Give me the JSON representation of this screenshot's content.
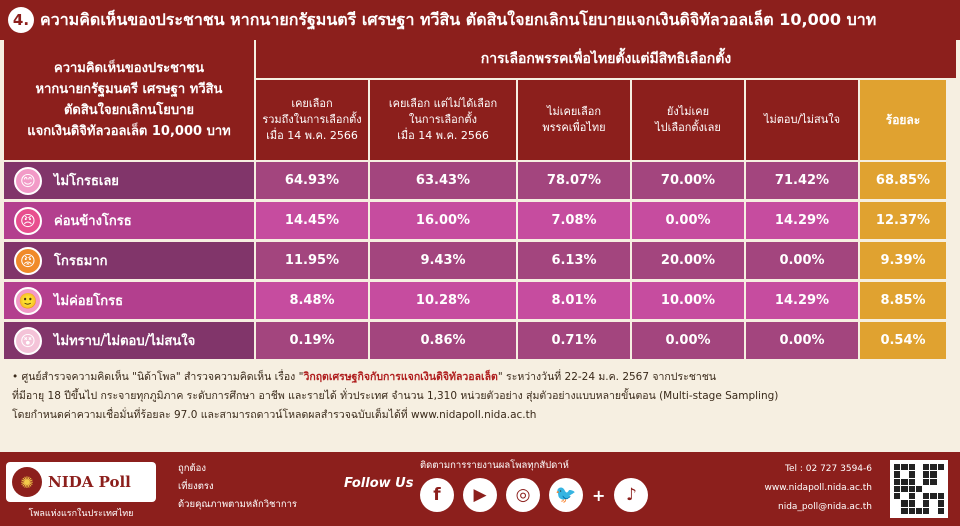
{
  "title": {
    "number": "4.",
    "text": "ความคิดเห็นของประชาชน หากนายกรัฐมนตรี เศรษฐา ทวีสิน ตัดสินใจยกเลิกนโยบายแจกเงินดิจิทัลวอลเล็ต 10,000 บาท"
  },
  "table": {
    "corner_header": "ความคิดเห็นของประชาชน\nหากนายกรัฐมนตรี เศรษฐา ทวีสิน\nตัดสินใจยกเลิกนโยบาย\nแจกเงินดิจิทัลวอลเล็ต 10,000 บาท",
    "group_header": "การเลือกพรรคเพื่อไทยตั้งแต่มีสิทธิเลือกตั้ง",
    "total_header": "ร้อยละ"
  },
  "chart_data": {
    "type": "table",
    "columns": [
      "เคยเลือก\nรวมถึงในการเลือกตั้ง\nเมื่อ 14 พ.ค. 2566",
      "เคยเลือก แต่ไม่ได้เลือก\nในการเลือกตั้ง\nเมื่อ 14 พ.ค. 2566",
      "ไม่เคยเลือก\nพรรคเพื่อไทย",
      "ยังไม่เคย\nไปเลือกตั้งเลย",
      "ไม่ตอบ/ไม่สนใจ",
      "ร้อยละ"
    ],
    "rows": [
      {
        "label": "ไม่โกรธเลย",
        "values": [
          "64.93%",
          "63.43%",
          "78.07%",
          "70.00%",
          "71.42%",
          "68.85%"
        ]
      },
      {
        "label": "ค่อนข้างโกรธ",
        "values": [
          "14.45%",
          "16.00%",
          "7.08%",
          "0.00%",
          "14.29%",
          "12.37%"
        ]
      },
      {
        "label": "โกรธมาก",
        "values": [
          "11.95%",
          "9.43%",
          "6.13%",
          "20.00%",
          "0.00%",
          "9.39%"
        ]
      },
      {
        "label": "ไม่ค่อยโกรธ",
        "values": [
          "8.48%",
          "10.28%",
          "8.01%",
          "10.00%",
          "14.29%",
          "8.85%"
        ]
      },
      {
        "label": "ไม่ทราบ/ไม่ตอบ/ไม่สนใจ",
        "values": [
          "0.19%",
          "0.86%",
          "0.71%",
          "0.00%",
          "0.00%",
          "0.54%"
        ]
      }
    ]
  },
  "colors": {
    "header": "#8c1f1c",
    "total_col": "#e0a230",
    "row_even": "#a3457e",
    "row_odd": "#c64c9f",
    "row_even_label": "#81356a",
    "row_odd_label": "#b33f8e",
    "face_fills": [
      "#f29ac7",
      "#e84f8e",
      "#f08a2a",
      "#f29ac7",
      "#f4c3d8"
    ]
  },
  "faces": [
    "smile-face-icon",
    "annoyed-face-icon",
    "angry-fire-face-icon",
    "neutral-face-icon",
    "confused-face-icon"
  ],
  "face_glyphs": [
    "😊",
    "😠",
    "😡",
    "🙂",
    "😵"
  ],
  "notes": {
    "line1_pre": "• ศูนย์สำรวจความคิดเห็น \"นิด้าโพล\" สำรวจความคิดเห็น เรื่อง \"",
    "line1_topic": "วิกฤตเศรษฐกิจกับการแจกเงินดิจิทัลวอลเล็ต",
    "line1_post": "\" ระหว่างวันที่ 22-24 ม.ค. 2567 จากประชาชน",
    "line2": "ที่มีอายุ 18 ปีขึ้นไป กระจายทุกภูมิภาค ระดับการศึกษา อาชีพ และรายได้ ทั่วประเทศ จำนวน 1,310 หน่วยตัวอย่าง สุ่มตัวอย่างแบบหลายขั้นตอน (Multi-stage Sampling)",
    "line3": "โดยกำหนดค่าความเชื่อมั่นที่ร้อยละ 97.0 และสามารถดาวน์โหลดผลสำรวจฉบับเต็มได้ที่ www.nidapoll.nida.ac.th"
  },
  "footer": {
    "logo_text": "NIDA Poll",
    "logo_sub": "โพลแห่งแรกในประเทศไทย",
    "motto": [
      "ถูกต้อง",
      "เที่ยงตรง",
      "ด้วยคุณภาพตามหลักวิชาการ"
    ],
    "follow_label": "Follow Us",
    "follow_top": "ติดตามการรายงานผลโพลทุกสัปดาห์",
    "socials": [
      "facebook-icon",
      "youtube-icon",
      "instagram-icon",
      "twitter-icon",
      "tiktok-icon"
    ],
    "social_glyphs": [
      "f",
      "▶",
      "◎",
      "🐦",
      "♪"
    ],
    "plus": "+",
    "tel": "Tel : 02 727 3594-6",
    "web": "www.nidapoll.nida.ac.th",
    "email": "nida_poll@nida.ac.th"
  }
}
